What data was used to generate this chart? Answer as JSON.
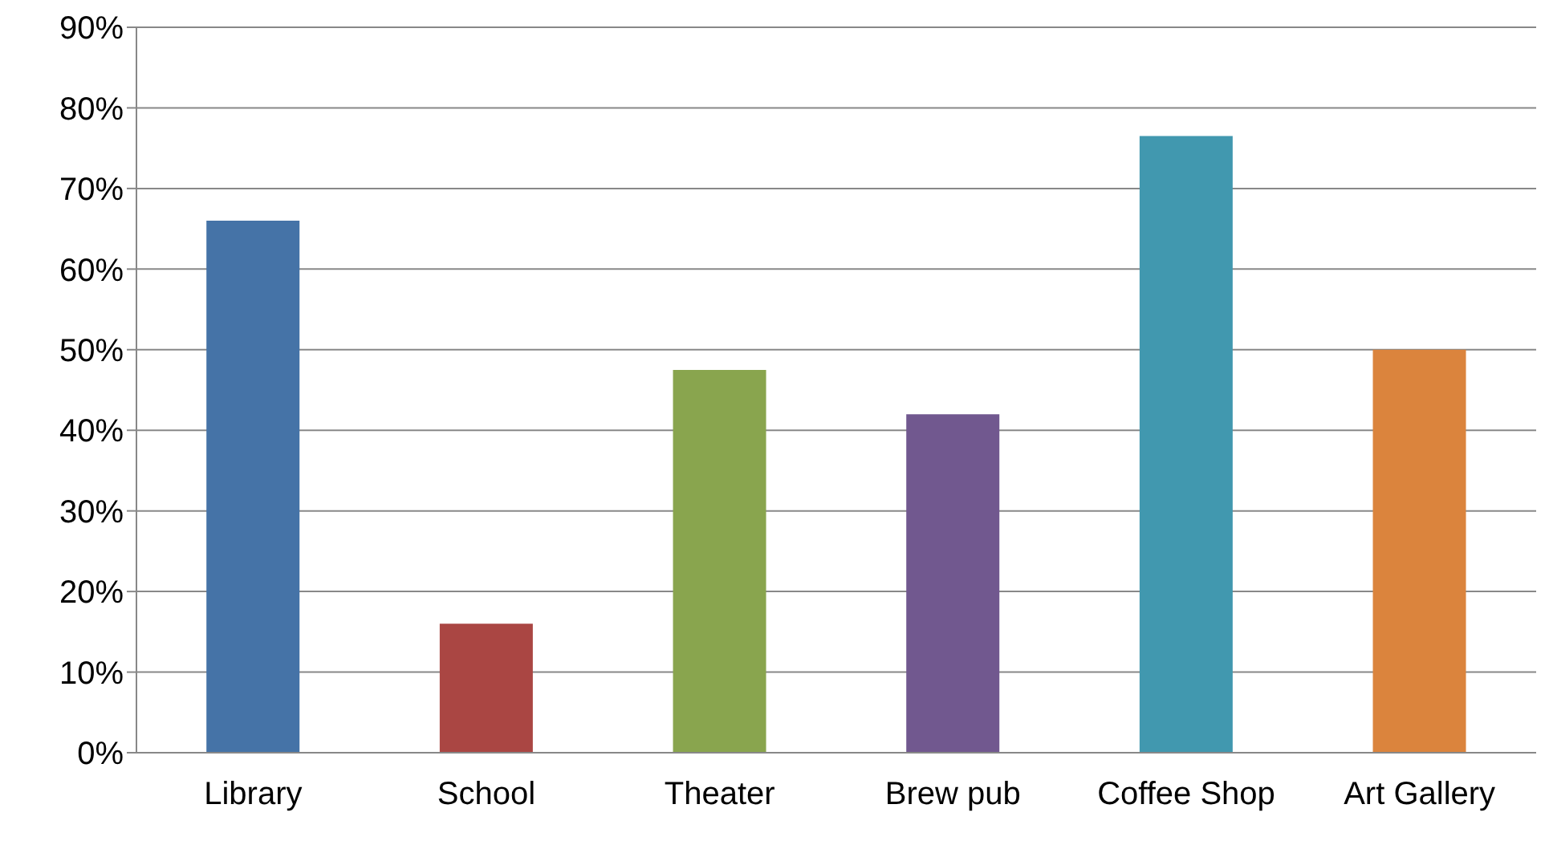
{
  "chart_data": {
    "type": "bar",
    "categories": [
      "Library",
      "School",
      "Theater",
      "Brew pub",
      "Coffee Shop",
      "Art Gallery"
    ],
    "values": [
      66,
      16,
      47.5,
      42,
      76.5,
      50
    ],
    "colors": [
      "#4573a7",
      "#aa4643",
      "#89a54e",
      "#71588f",
      "#4198af",
      "#db843d"
    ],
    "ylim": [
      0,
      90
    ],
    "yticks": [
      {
        "value": 0,
        "label": "0%"
      },
      {
        "value": 10,
        "label": "10%"
      },
      {
        "value": 20,
        "label": "20%"
      },
      {
        "value": 30,
        "label": "30%"
      },
      {
        "value": 40,
        "label": "40%"
      },
      {
        "value": 50,
        "label": "50%"
      },
      {
        "value": 60,
        "label": "60%"
      },
      {
        "value": 70,
        "label": "70%"
      },
      {
        "value": 80,
        "label": "80%"
      },
      {
        "value": 90,
        "label": "90%"
      }
    ],
    "grid": "y",
    "legend": false
  }
}
